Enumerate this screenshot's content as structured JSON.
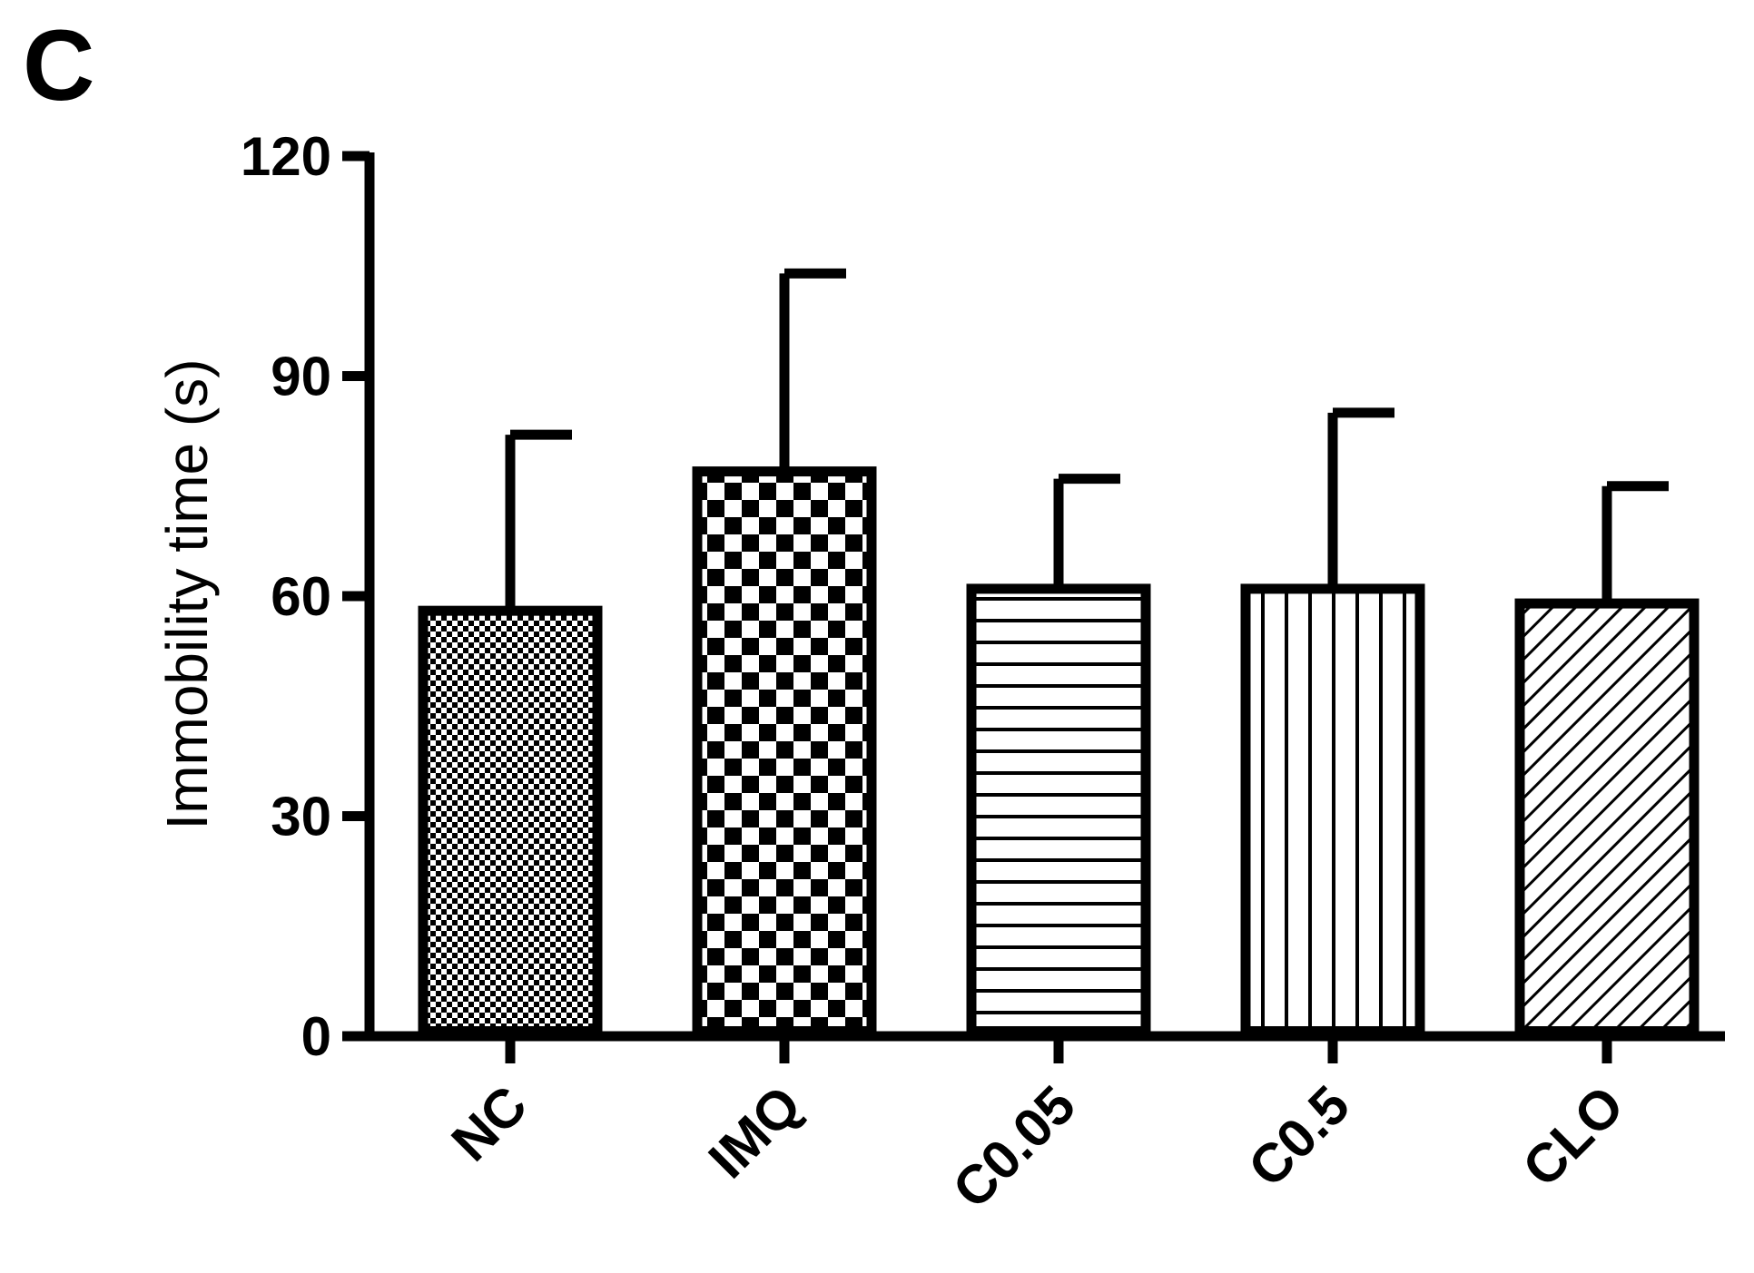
{
  "panel_label": "C",
  "chart_data": {
    "type": "bar",
    "title": "",
    "xlabel": "",
    "ylabel": "Immobility time (s)",
    "ylim": [
      0,
      120
    ],
    "yticks": [
      0,
      30,
      60,
      90,
      120
    ],
    "categories": [
      "NC",
      "IMQ",
      "C0.05",
      "C0.5",
      "CLO"
    ],
    "values": [
      58,
      77,
      61,
      61,
      59
    ],
    "errors": [
      24,
      27,
      15,
      24,
      16
    ],
    "patterns": [
      "fine-checker",
      "checker",
      "horizontal-lines",
      "vertical-lines",
      "diagonal-lines"
    ],
    "grid": false,
    "legend": "none"
  }
}
